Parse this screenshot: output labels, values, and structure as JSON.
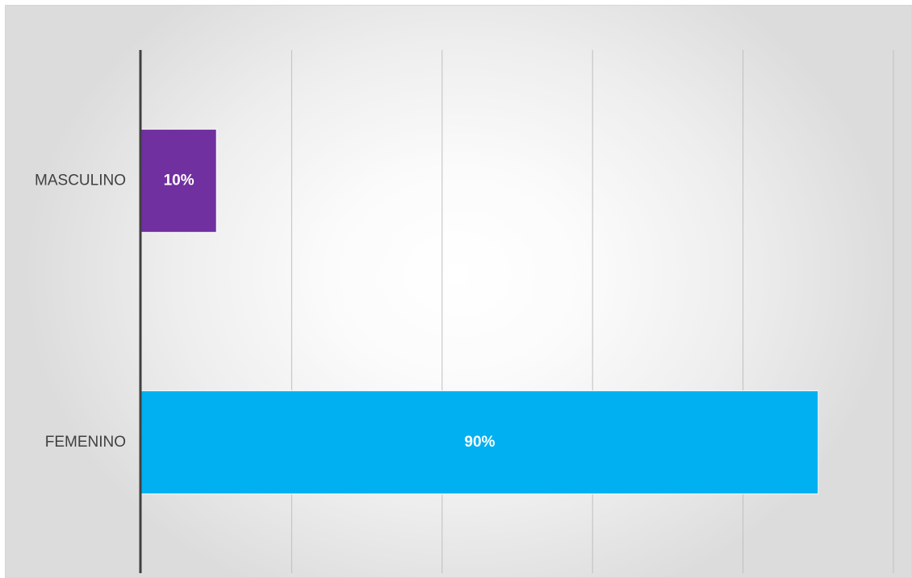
{
  "chart_data": {
    "type": "bar",
    "orientation": "horizontal",
    "categories": [
      "MASCULINO",
      "FEMENINO"
    ],
    "values": [
      10,
      90
    ],
    "data_labels": [
      "10%",
      "90%"
    ],
    "colors": [
      "#7030A0",
      "#00B0F0"
    ],
    "xlim": [
      0,
      100
    ],
    "grid": true,
    "title": "",
    "xlabel": "",
    "ylabel": ""
  }
}
